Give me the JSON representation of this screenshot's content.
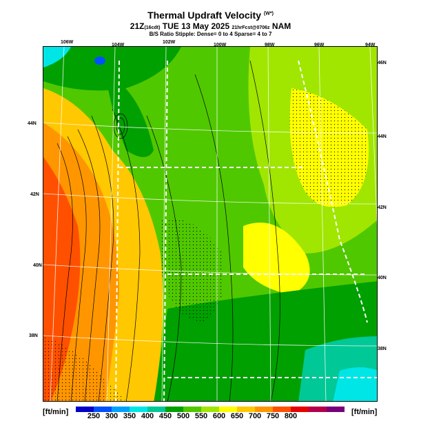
{
  "header": {
    "title": "Thermal Updraft Velocity",
    "title_sup": "(W*)",
    "subtitle_main": "21Z",
    "subtitle_local": "(16cdt)",
    "subtitle_date": "TUE 13 May 2025",
    "subtitle_init": "21hrFcst@0706z",
    "subtitle_model": "NAM",
    "subtitle2": "B/S Ratio Stipple: Dense= 0 to 4  Sparse= 4 to 7"
  },
  "axes": {
    "lon_labels_top": [
      "106W",
      "104W",
      "102W",
      "100W",
      "98W",
      "96W",
      "94W"
    ],
    "lat_labels_left": [
      "44N",
      "42N",
      "40N",
      "38N"
    ],
    "lat_labels_right": [
      "46N",
      "44N",
      "42N",
      "40N",
      "38N"
    ]
  },
  "legend": {
    "unit_left": "[ft/min]",
    "unit_right": "[ft/min]",
    "values": [
      "250",
      "300",
      "350",
      "400",
      "450",
      "500",
      "550",
      "600",
      "650",
      "700",
      "750",
      "800"
    ],
    "colors": [
      "#0000c8",
      "#0050ff",
      "#00a0ff",
      "#00e6e6",
      "#00c896",
      "#00a000",
      "#50c800",
      "#a0e600",
      "#ffff00",
      "#ffc800",
      "#ff9600",
      "#ff5000",
      "#e60000",
      "#b4004b",
      "#780078"
    ]
  },
  "map": {
    "palette": {
      "blue": "#0050ff",
      "cyan": "#00e6e6",
      "teal": "#00c896",
      "dkgreen": "#00a000",
      "green": "#50c800",
      "lime": "#a0e600",
      "yellow": "#ffff00",
      "orange": "#ff9600",
      "red": "#ff5000"
    }
  }
}
